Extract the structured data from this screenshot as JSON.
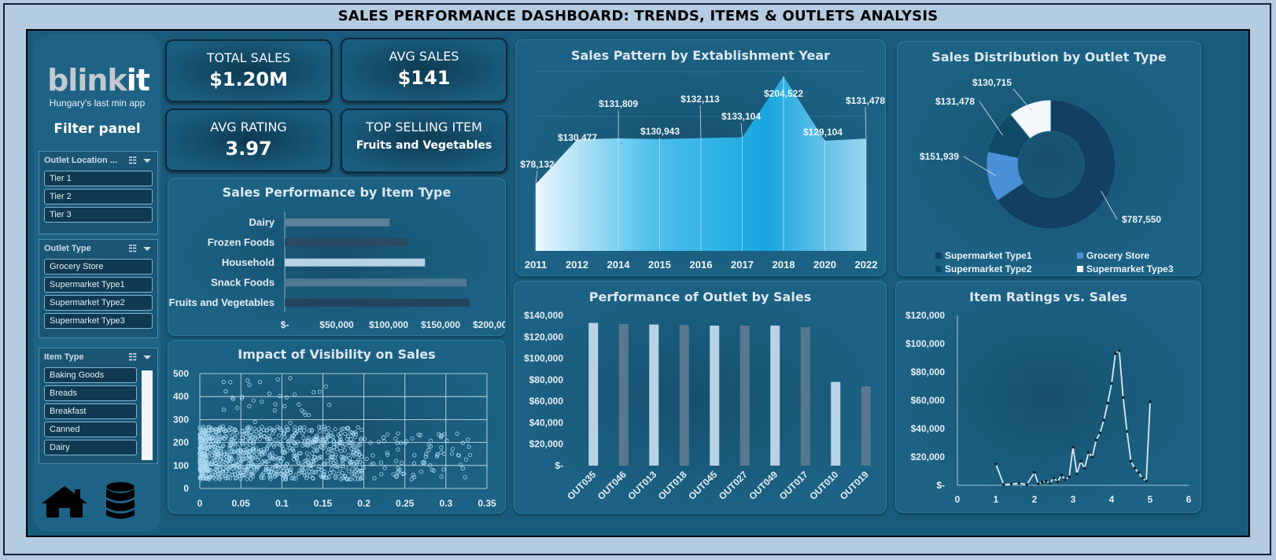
{
  "title": "SALES PERFORMANCE DASHBOARD: TRENDS, ITEMS & OUTLETS ANALYSIS",
  "sidebar": {
    "logo_main": "blink",
    "logo_it": "it",
    "tagline": "Hungary's last min app",
    "filter_panel": "Filter panel",
    "slicers": [
      {
        "title": "Outlet Location ...",
        "items": [
          "Tier 1",
          "Tier 2",
          "Tier 3"
        ]
      },
      {
        "title": "Outlet Type",
        "items": [
          "Grocery Store",
          "Supermarket Type1",
          "Supermarket Type2",
          "Supermarket Type3"
        ]
      },
      {
        "title": "Item Type",
        "items": [
          "Baking Goods",
          "Breads",
          "Breakfast",
          "Canned",
          "Dairy"
        ]
      }
    ],
    "icons": [
      "home-icon",
      "database-icon"
    ]
  },
  "kpis": {
    "total_sales_label": "TOTAL SALES",
    "total_sales": "$1.20M",
    "avg_sales_label": "AVG SALES",
    "avg_sales": "$141",
    "avg_rating_label": "AVG RATING",
    "avg_rating": "3.97",
    "top_item_label": "TOP SELLING ITEM",
    "top_item": "Fruits and Vegetables"
  },
  "colors": {
    "background": "#1a5b7c",
    "accent": "#1aa8e0",
    "frame": "#b4cce2"
  },
  "chart_data": [
    {
      "id": "item_type",
      "type": "bar",
      "orientation": "horizontal",
      "title": "Sales Performance by Item Type",
      "categories": [
        "Dairy",
        "Frozen Foods",
        "Household",
        "Snack Foods",
        "Fruits and Vegetables"
      ],
      "values": [
        101000,
        118000,
        135000,
        175000,
        178000
      ],
      "xticks": [
        "$-",
        "$50,000",
        "$100,000",
        "$150,000",
        "$200,000"
      ],
      "xlim": [
        0,
        200000
      ]
    },
    {
      "id": "est_year",
      "type": "area",
      "title": "Sales Pattern by Extablishment Year",
      "x": [
        "2011",
        "2012",
        "2014",
        "2015",
        "2016",
        "2017",
        "2018",
        "2020",
        "2022"
      ],
      "values": [
        78132,
        130477,
        131809,
        130943,
        132113,
        133104,
        204522,
        129104,
        131478
      ],
      "labels": [
        "$78,132",
        "$130,477",
        "$131,809",
        "$130,943",
        "$132,113",
        "$133,104",
        "$204,522",
        "$129,104",
        "$131,478"
      ],
      "ylim": [
        0,
        210000
      ]
    },
    {
      "id": "outlet_type",
      "type": "pie",
      "variant": "donut",
      "title": "Sales Distribution by Outlet Type",
      "categories": [
        "Supermarket Type1",
        "Grocery Store",
        "Supermarket Type2",
        "Supermarket Type3"
      ],
      "values": [
        787550,
        151939,
        131478,
        130715
      ],
      "labels": [
        "$787,550",
        "$151,939",
        "$131,478",
        "$130,715"
      ],
      "colors": [
        "#133f63",
        "#4a90d9",
        "#0e4a66",
        "#f4f8fc"
      ],
      "legend": "bottom"
    },
    {
      "id": "visibility",
      "type": "scatter",
      "title": "Impact of Visibility on Sales",
      "xticks": [
        "0",
        "0.05",
        "0.1",
        "0.15",
        "0.2",
        "0.25",
        "0.3",
        "0.35"
      ],
      "yticks": [
        "0",
        "100",
        "200",
        "300",
        "400",
        "500"
      ],
      "xlim": [
        0,
        0.35
      ],
      "ylim": [
        0,
        500
      ],
      "grid": true,
      "note": "dense cloud of ~8500 points concentrated at visibility 0-0.2, sales 40-270"
    },
    {
      "id": "outlet_sales",
      "type": "bar",
      "title": "Performance of Outlet by Sales",
      "categories": [
        "OUT035",
        "OUT046",
        "OUT013",
        "OUT018",
        "OUT045",
        "OUT027",
        "OUT049",
        "OUT017",
        "OUT010",
        "OUT019"
      ],
      "values": [
        133000,
        132000,
        131500,
        131000,
        130500,
        130500,
        130500,
        129000,
        78000,
        73800
      ],
      "yticks": [
        "$-",
        "$20,000",
        "$40,000",
        "$60,000",
        "$80,000",
        "$100,000",
        "$120,000",
        "$140,000"
      ],
      "ylim": [
        0,
        140000
      ]
    },
    {
      "id": "ratings_sales",
      "type": "line",
      "title": "Item Ratings vs. Sales",
      "x": [
        1.0,
        1.2,
        1.4,
        1.6,
        1.8,
        2.0,
        2.1,
        2.2,
        2.3,
        2.4,
        2.5,
        2.6,
        2.7,
        2.8,
        2.9,
        3.0,
        3.1,
        3.2,
        3.3,
        3.4,
        3.5,
        3.6,
        3.7,
        3.8,
        3.9,
        4.0,
        4.1,
        4.2,
        4.3,
        4.4,
        4.5,
        4.6,
        4.7,
        4.8,
        4.9,
        5.0
      ],
      "values": [
        15000,
        500,
        800,
        1500,
        500,
        9000,
        1000,
        2000,
        3000,
        1500,
        5000,
        2500,
        7000,
        4000,
        6000,
        27000,
        8000,
        17000,
        12000,
        23000,
        20000,
        32000,
        37000,
        46000,
        58000,
        72000,
        93000,
        95000,
        62000,
        38000,
        17000,
        12000,
        9000,
        5000,
        3000,
        59000
      ],
      "xticks": [
        "0",
        "1",
        "2",
        "3",
        "4",
        "5",
        "6"
      ],
      "yticks": [
        "$-",
        "$20,000",
        "$40,000",
        "$60,000",
        "$80,000",
        "$100,000",
        "$120,000"
      ],
      "xlim": [
        0,
        6
      ],
      "ylim": [
        0,
        120000
      ]
    }
  ]
}
